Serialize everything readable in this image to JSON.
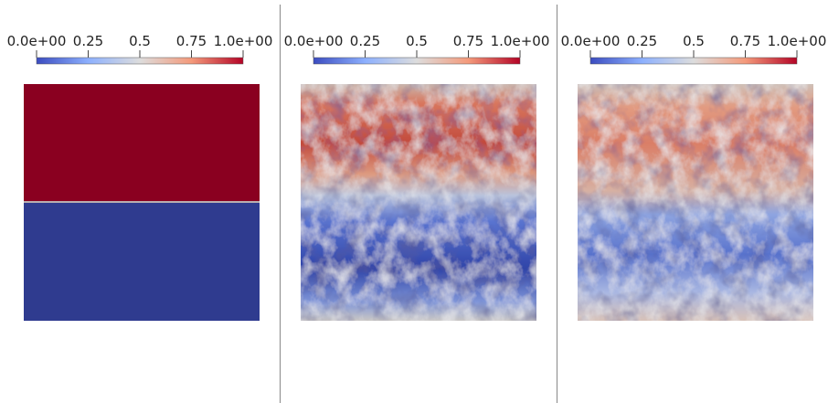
{
  "panels": [
    {
      "colorbar": {
        "tick_labels": [
          "0.0e+00",
          "0.25",
          "0.5",
          "0.75",
          "1.0e+00"
        ]
      }
    },
    {
      "colorbar": {
        "tick_labels": [
          "0.0e+00",
          "0.25",
          "0.5",
          "0.75",
          "1.0e+00"
        ]
      }
    },
    {
      "colorbar": {
        "tick_labels": [
          "0.0e+00",
          "0.25",
          "0.5",
          "0.75",
          "1.0e+00"
        ]
      }
    }
  ]
}
